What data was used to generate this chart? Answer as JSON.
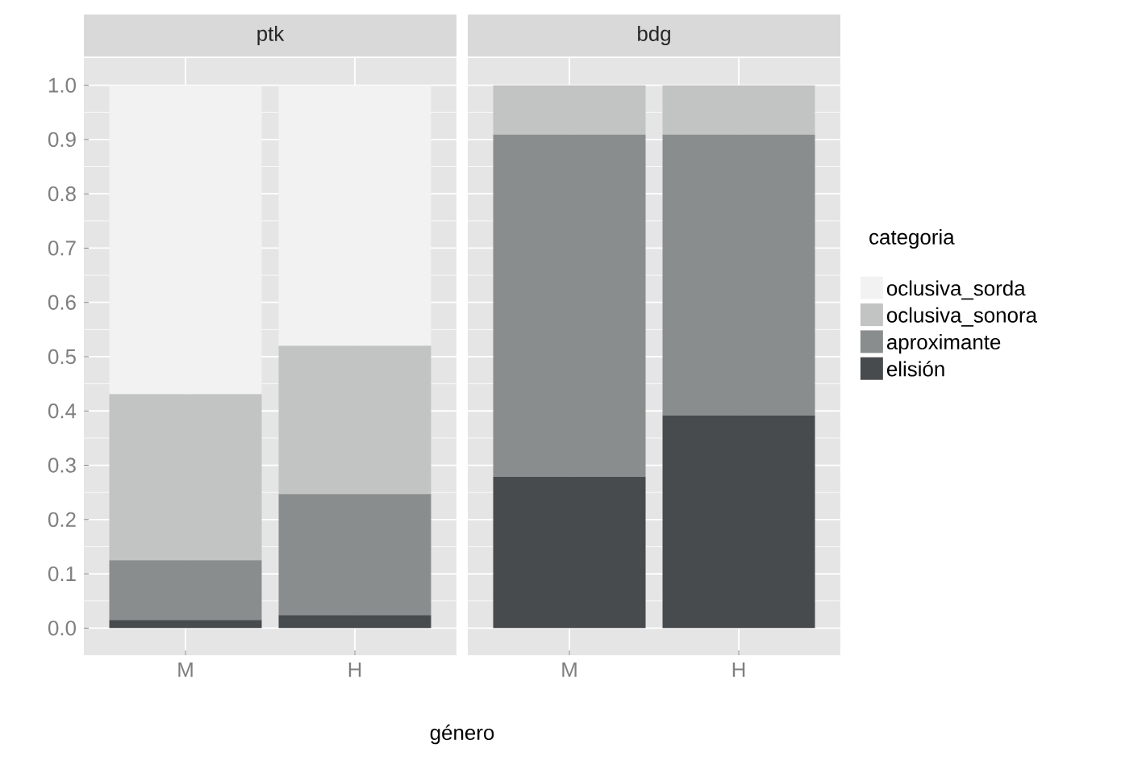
{
  "chart_data": [
    {
      "type": "bar",
      "title": "ptk",
      "xlabel": "género",
      "categories": [
        "M",
        "H"
      ],
      "stacked": true,
      "grid": true,
      "ylim": [
        -0.05,
        1.05
      ],
      "yticks": [
        {
          "value": 0,
          "label": "0.0"
        },
        0.1,
        0.2,
        0.3,
        0.4,
        0.5,
        0.6,
        0.7,
        0.8,
        0.9,
        {
          "value": 1,
          "label": "1.0"
        }
      ],
      "series": [
        {
          "color": "#484b4e",
          "values": [
            0.015,
            0.024
          ]
        },
        {
          "color": "#8a8d8e",
          "values": [
            0.11,
            0.223
          ]
        },
        {
          "color": "#c2c3c3",
          "values": [
            0.306,
            0.273
          ]
        },
        {
          "color": "#f2f2f2",
          "values": [
            0.569,
            0.48
          ]
        }
      ]
    },
    {
      "type": "bar",
      "title": "bdg",
      "categories": [
        "M",
        "H"
      ],
      "stacked": true,
      "grid": true,
      "tick_labels": "x",
      "legend": "right",
      "legend_title": "categoria",
      "ylim": [
        -0.05,
        1.05
      ],
      "yticks": [
        0,
        0.1,
        0.2,
        0.3,
        0.4,
        0.5,
        0.6,
        0.7,
        0.8,
        0.9,
        1
      ],
      "series": [
        {
          "name": "elisión",
          "color": "#484b4e",
          "values": [
            0.279,
            0.392
          ]
        },
        {
          "name": "aproximante",
          "color": "#8a8d8e",
          "values": [
            0.63,
            0.517
          ]
        },
        {
          "name": "oclusiva_sonora",
          "color": "#c2c3c3",
          "values": [
            0.091,
            0.091
          ]
        },
        {
          "name": "oclusiva_sorda",
          "color": "#f2f2f2",
          "values": [
            0.0,
            0.0
          ]
        }
      ]
    }
  ]
}
